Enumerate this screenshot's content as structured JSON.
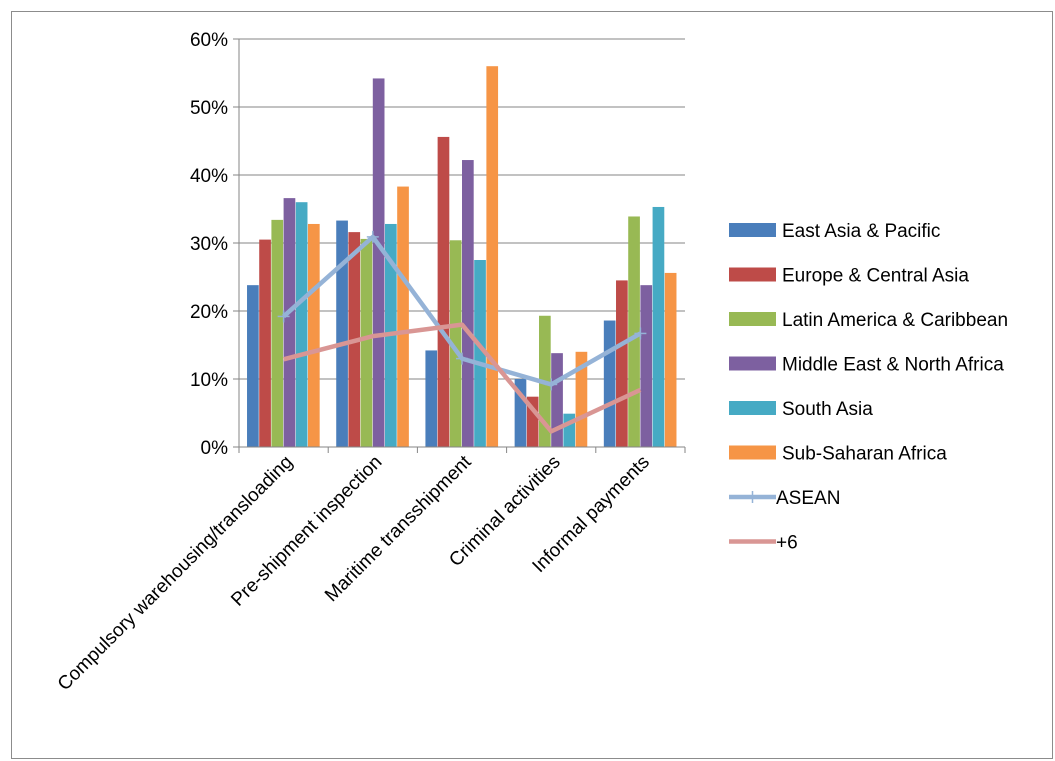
{
  "chart_data": {
    "type": "bar",
    "categories": [
      "Compulsory warehousing/transloading",
      "Pre-shipment inspection",
      "Maritime transshipment",
      "Criminal activities",
      "Informal payments"
    ],
    "y_ticks": [
      "0%",
      "10%",
      "20%",
      "30%",
      "40%",
      "50%",
      "60%"
    ],
    "ylim": [
      0,
      60
    ],
    "grid": true,
    "legend_position": "right",
    "series": [
      {
        "name": "East Asia & Pacific",
        "kind": "bar",
        "color": "#4a7ebb",
        "values": [
          23.8,
          33.3,
          14.2,
          10.0,
          18.6
        ]
      },
      {
        "name": "Europe & Central Asia",
        "kind": "bar",
        "color": "#be4b48",
        "values": [
          30.5,
          31.6,
          45.6,
          7.4,
          24.5
        ]
      },
      {
        "name": "Latin America & Caribbean",
        "kind": "bar",
        "color": "#98b954",
        "values": [
          33.4,
          30.6,
          30.4,
          19.3,
          33.9
        ]
      },
      {
        "name": "Middle East & North Africa",
        "kind": "bar",
        "color": "#7d60a0",
        "values": [
          36.6,
          54.2,
          42.2,
          13.8,
          23.8
        ]
      },
      {
        "name": "South Asia",
        "kind": "bar",
        "color": "#46aac4",
        "values": [
          36.0,
          32.8,
          27.5,
          4.9,
          35.3
        ]
      },
      {
        "name": "Sub-Saharan Africa",
        "kind": "bar",
        "color": "#f69546",
        "values": [
          32.8,
          38.3,
          56.0,
          14.0,
          25.6
        ]
      },
      {
        "name": "ASEAN",
        "kind": "line",
        "color": "#95b3d7",
        "marker": "plus",
        "values": [
          19.2,
          30.9,
          13.0,
          9.2,
          16.7
        ]
      },
      {
        "name": "+6",
        "kind": "line",
        "color": "#d99694",
        "marker": "none",
        "values": [
          12.9,
          16.3,
          18.0,
          2.3,
          8.4
        ]
      }
    ]
  }
}
